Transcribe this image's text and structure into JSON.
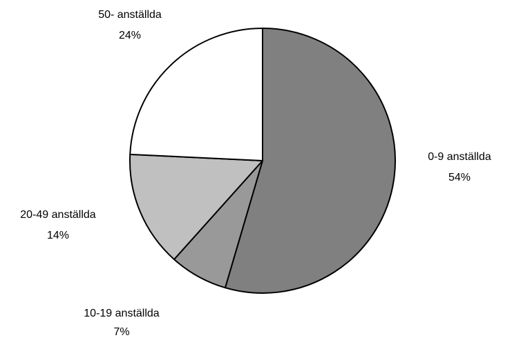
{
  "chart_data": {
    "type": "pie",
    "start": "12 o'clock",
    "direction": "clockwise",
    "border_color": "#000000",
    "slices": [
      {
        "name": "0-9 anställda",
        "value": 54,
        "label": "54%",
        "color": "#808080"
      },
      {
        "name": "10-19 anställda",
        "value": 7,
        "label": "7%",
        "color": "#999999"
      },
      {
        "name": "20-49 anställda",
        "value": 14,
        "label": "14%",
        "color": "#c0c0c0"
      },
      {
        "name": "50- anställda",
        "value": 24,
        "label": "24%",
        "color": "#ffffff"
      }
    ]
  }
}
